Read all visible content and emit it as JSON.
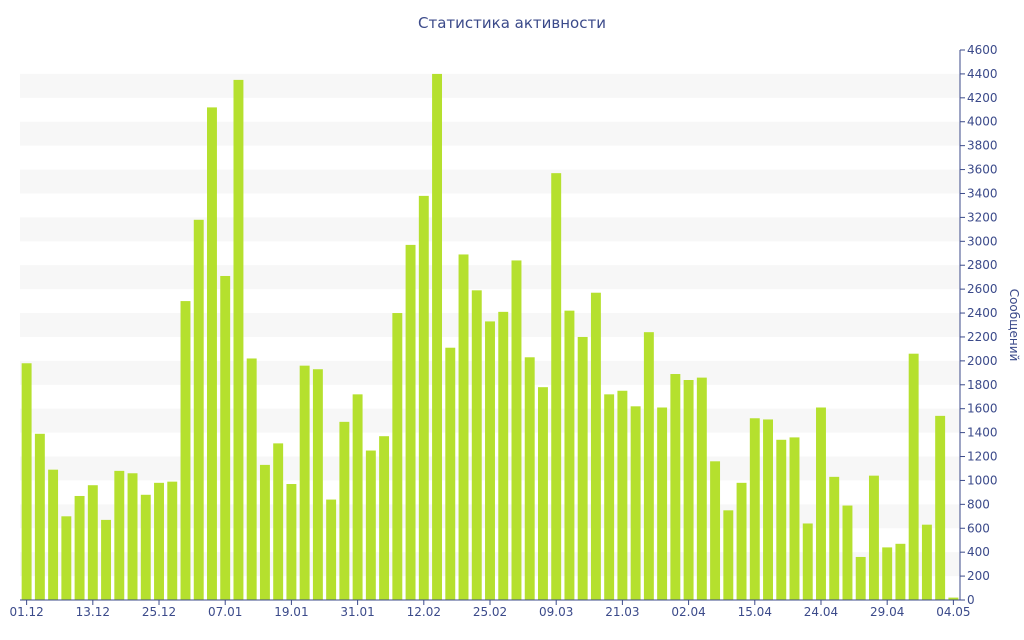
{
  "chart_data": {
    "type": "bar",
    "title": "Статистика активности",
    "xlabel": "",
    "ylabel": "Сообщений",
    "ylim": [
      0,
      4600
    ],
    "y_ticks": [
      0,
      200,
      400,
      600,
      800,
      1000,
      1200,
      1400,
      1600,
      1800,
      2000,
      2200,
      2400,
      2600,
      2800,
      3000,
      3200,
      3400,
      3600,
      3800,
      4000,
      4200,
      4400,
      4600
    ],
    "y_axis_side": "right",
    "grid": "alternating horizontal bands",
    "bar_color": "#b5e02e",
    "band_color": "#f7f7f7",
    "axis_color": "#3b4a8a",
    "x_tick_labels": [
      {
        "index": 0,
        "label": "01.12"
      },
      {
        "index": 5,
        "label": "13.12"
      },
      {
        "index": 10,
        "label": "25.12"
      },
      {
        "index": 15,
        "label": "07.01"
      },
      {
        "index": 20,
        "label": "19.01"
      },
      {
        "index": 25,
        "label": "31.01"
      },
      {
        "index": 30,
        "label": "12.02"
      },
      {
        "index": 35,
        "label": "25.02"
      },
      {
        "index": 40,
        "label": "09.03"
      },
      {
        "index": 45,
        "label": "21.03"
      },
      {
        "index": 50,
        "label": "02.04"
      },
      {
        "index": 55,
        "label": "15.04"
      },
      {
        "index": 60,
        "label": "24.04"
      },
      {
        "index": 65,
        "label": "29.04"
      },
      {
        "index": 70,
        "label": "04.05"
      }
    ],
    "values": [
      1980,
      1390,
      1090,
      700,
      870,
      960,
      670,
      1080,
      1060,
      880,
      980,
      990,
      2500,
      3180,
      4120,
      2710,
      4350,
      2020,
      1130,
      1310,
      970,
      1960,
      1930,
      840,
      1490,
      1720,
      1250,
      1370,
      2400,
      2970,
      3380,
      4400,
      2110,
      2890,
      2590,
      2330,
      2410,
      2840,
      2030,
      1780,
      3570,
      2420,
      2200,
      2570,
      1720,
      1750,
      1620,
      2240,
      1610,
      1890,
      1840,
      1860,
      1160,
      750,
      980,
      1520,
      1510,
      1340,
      1360,
      640,
      1610,
      1030,
      790,
      360,
      1040,
      440,
      470,
      2060,
      630,
      1540,
      20
    ]
  }
}
